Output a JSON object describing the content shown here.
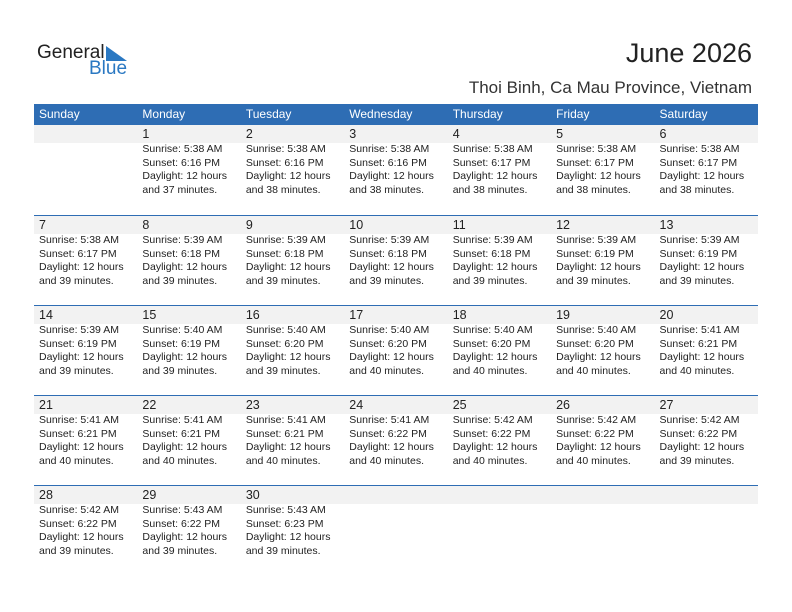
{
  "logo": {
    "general": "General",
    "blue": "Blue"
  },
  "title": "June 2026",
  "location": "Thoi Binh, Ca Mau Province, Vietnam",
  "colors": {
    "header": "#2e6db4",
    "band": "#f2f2f2",
    "logo_blue": "#2a78c2"
  },
  "weekdays": [
    "Sunday",
    "Monday",
    "Tuesday",
    "Wednesday",
    "Thursday",
    "Friday",
    "Saturday"
  ],
  "weeks": [
    [
      null,
      {
        "day": "1",
        "sunrise": "Sunrise: 5:38 AM",
        "sunset": "Sunset: 6:16 PM",
        "daylight": "Daylight: 12 hours",
        "minutes": "and 37 minutes."
      },
      {
        "day": "2",
        "sunrise": "Sunrise: 5:38 AM",
        "sunset": "Sunset: 6:16 PM",
        "daylight": "Daylight: 12 hours",
        "minutes": "and 38 minutes."
      },
      {
        "day": "3",
        "sunrise": "Sunrise: 5:38 AM",
        "sunset": "Sunset: 6:16 PM",
        "daylight": "Daylight: 12 hours",
        "minutes": "and 38 minutes."
      },
      {
        "day": "4",
        "sunrise": "Sunrise: 5:38 AM",
        "sunset": "Sunset: 6:17 PM",
        "daylight": "Daylight: 12 hours",
        "minutes": "and 38 minutes."
      },
      {
        "day": "5",
        "sunrise": "Sunrise: 5:38 AM",
        "sunset": "Sunset: 6:17 PM",
        "daylight": "Daylight: 12 hours",
        "minutes": "and 38 minutes."
      },
      {
        "day": "6",
        "sunrise": "Sunrise: 5:38 AM",
        "sunset": "Sunset: 6:17 PM",
        "daylight": "Daylight: 12 hours",
        "minutes": "and 38 minutes."
      }
    ],
    [
      {
        "day": "7",
        "sunrise": "Sunrise: 5:38 AM",
        "sunset": "Sunset: 6:17 PM",
        "daylight": "Daylight: 12 hours",
        "minutes": "and 39 minutes."
      },
      {
        "day": "8",
        "sunrise": "Sunrise: 5:39 AM",
        "sunset": "Sunset: 6:18 PM",
        "daylight": "Daylight: 12 hours",
        "minutes": "and 39 minutes."
      },
      {
        "day": "9",
        "sunrise": "Sunrise: 5:39 AM",
        "sunset": "Sunset: 6:18 PM",
        "daylight": "Daylight: 12 hours",
        "minutes": "and 39 minutes."
      },
      {
        "day": "10",
        "sunrise": "Sunrise: 5:39 AM",
        "sunset": "Sunset: 6:18 PM",
        "daylight": "Daylight: 12 hours",
        "minutes": "and 39 minutes."
      },
      {
        "day": "11",
        "sunrise": "Sunrise: 5:39 AM",
        "sunset": "Sunset: 6:18 PM",
        "daylight": "Daylight: 12 hours",
        "minutes": "and 39 minutes."
      },
      {
        "day": "12",
        "sunrise": "Sunrise: 5:39 AM",
        "sunset": "Sunset: 6:19 PM",
        "daylight": "Daylight: 12 hours",
        "minutes": "and 39 minutes."
      },
      {
        "day": "13",
        "sunrise": "Sunrise: 5:39 AM",
        "sunset": "Sunset: 6:19 PM",
        "daylight": "Daylight: 12 hours",
        "minutes": "and 39 minutes."
      }
    ],
    [
      {
        "day": "14",
        "sunrise": "Sunrise: 5:39 AM",
        "sunset": "Sunset: 6:19 PM",
        "daylight": "Daylight: 12 hours",
        "minutes": "and 39 minutes."
      },
      {
        "day": "15",
        "sunrise": "Sunrise: 5:40 AM",
        "sunset": "Sunset: 6:19 PM",
        "daylight": "Daylight: 12 hours",
        "minutes": "and 39 minutes."
      },
      {
        "day": "16",
        "sunrise": "Sunrise: 5:40 AM",
        "sunset": "Sunset: 6:20 PM",
        "daylight": "Daylight: 12 hours",
        "minutes": "and 39 minutes."
      },
      {
        "day": "17",
        "sunrise": "Sunrise: 5:40 AM",
        "sunset": "Sunset: 6:20 PM",
        "daylight": "Daylight: 12 hours",
        "minutes": "and 40 minutes."
      },
      {
        "day": "18",
        "sunrise": "Sunrise: 5:40 AM",
        "sunset": "Sunset: 6:20 PM",
        "daylight": "Daylight: 12 hours",
        "minutes": "and 40 minutes."
      },
      {
        "day": "19",
        "sunrise": "Sunrise: 5:40 AM",
        "sunset": "Sunset: 6:20 PM",
        "daylight": "Daylight: 12 hours",
        "minutes": "and 40 minutes."
      },
      {
        "day": "20",
        "sunrise": "Sunrise: 5:41 AM",
        "sunset": "Sunset: 6:21 PM",
        "daylight": "Daylight: 12 hours",
        "minutes": "and 40 minutes."
      }
    ],
    [
      {
        "day": "21",
        "sunrise": "Sunrise: 5:41 AM",
        "sunset": "Sunset: 6:21 PM",
        "daylight": "Daylight: 12 hours",
        "minutes": "and 40 minutes."
      },
      {
        "day": "22",
        "sunrise": "Sunrise: 5:41 AM",
        "sunset": "Sunset: 6:21 PM",
        "daylight": "Daylight: 12 hours",
        "minutes": "and 40 minutes."
      },
      {
        "day": "23",
        "sunrise": "Sunrise: 5:41 AM",
        "sunset": "Sunset: 6:21 PM",
        "daylight": "Daylight: 12 hours",
        "minutes": "and 40 minutes."
      },
      {
        "day": "24",
        "sunrise": "Sunrise: 5:41 AM",
        "sunset": "Sunset: 6:22 PM",
        "daylight": "Daylight: 12 hours",
        "minutes": "and 40 minutes."
      },
      {
        "day": "25",
        "sunrise": "Sunrise: 5:42 AM",
        "sunset": "Sunset: 6:22 PM",
        "daylight": "Daylight: 12 hours",
        "minutes": "and 40 minutes."
      },
      {
        "day": "26",
        "sunrise": "Sunrise: 5:42 AM",
        "sunset": "Sunset: 6:22 PM",
        "daylight": "Daylight: 12 hours",
        "minutes": "and 40 minutes."
      },
      {
        "day": "27",
        "sunrise": "Sunrise: 5:42 AM",
        "sunset": "Sunset: 6:22 PM",
        "daylight": "Daylight: 12 hours",
        "minutes": "and 39 minutes."
      }
    ],
    [
      {
        "day": "28",
        "sunrise": "Sunrise: 5:42 AM",
        "sunset": "Sunset: 6:22 PM",
        "daylight": "Daylight: 12 hours",
        "minutes": "and 39 minutes."
      },
      {
        "day": "29",
        "sunrise": "Sunrise: 5:43 AM",
        "sunset": "Sunset: 6:22 PM",
        "daylight": "Daylight: 12 hours",
        "minutes": "and 39 minutes."
      },
      {
        "day": "30",
        "sunrise": "Sunrise: 5:43 AM",
        "sunset": "Sunset: 6:23 PM",
        "daylight": "Daylight: 12 hours",
        "minutes": "and 39 minutes."
      },
      null,
      null,
      null,
      null
    ]
  ]
}
